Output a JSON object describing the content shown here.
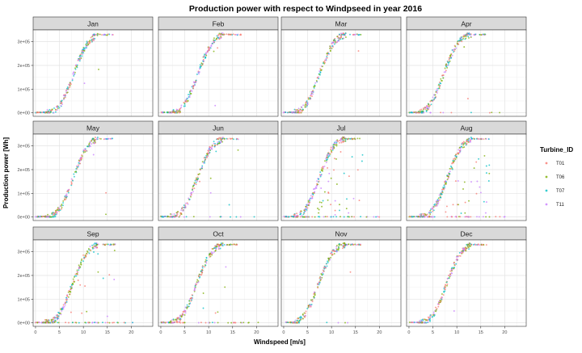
{
  "chart_data": {
    "type": "scatter",
    "title": "Production power with respect to Windpseed in year 2016",
    "xlabel": "Windspeed [m/s]",
    "ylabel": "Production power [Wh]",
    "xlim": [
      -0.5,
      24.5
    ],
    "ylim": [
      -15000,
      350000
    ],
    "x_ticks": [
      0,
      5,
      10,
      15,
      20
    ],
    "x_tick_labels": [
      "0",
      "5",
      "10",
      "15",
      "20"
    ],
    "y_ticks": [
      0,
      100000,
      200000,
      300000
    ],
    "y_tick_labels": [
      "0e+00",
      "1e+05",
      "2e+05",
      "3e+05"
    ],
    "grid": true,
    "legend_position": "right",
    "facets": [
      "Jan",
      "Feb",
      "Mar",
      "Apr",
      "May",
      "Jun",
      "Jul",
      "Aug",
      "Sep",
      "Oct",
      "Nov",
      "Dec"
    ],
    "series_trend": {
      "description": "power curve per turbine",
      "x": [
        0,
        2,
        3,
        4,
        5,
        6,
        7,
        8,
        9,
        10,
        11,
        12,
        13,
        14,
        16,
        20
      ],
      "y": [
        0,
        0,
        3000,
        15000,
        40000,
        80000,
        130000,
        185000,
        235000,
        278000,
        305000,
        322000,
        330000,
        332000,
        332000,
        332000
      ]
    },
    "legend": {
      "title": "Turbine_ID",
      "entries": [
        {
          "name": "T01",
          "color": "#F8766D"
        },
        {
          "name": "T06",
          "color": "#7CAE00"
        },
        {
          "name": "T07",
          "color": "#00BFC4"
        },
        {
          "name": "T11",
          "color": "#C77CFF"
        }
      ]
    }
  }
}
